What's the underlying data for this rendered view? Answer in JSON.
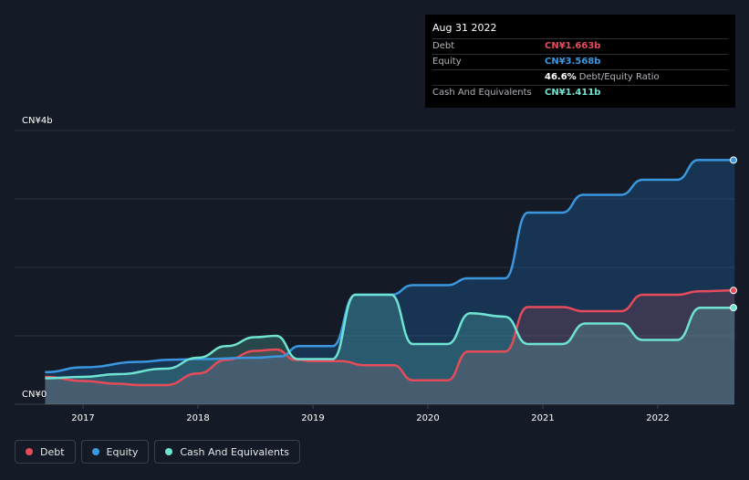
{
  "tooltip": {
    "date": "Aug 31 2022",
    "rows": [
      {
        "label": "Debt",
        "value": "CN¥1.663b",
        "color": "#e64b5a"
      },
      {
        "label": "Equity",
        "value": "CN¥3.568b",
        "color": "#3b97e0"
      },
      {
        "label": "",
        "value": "46.6%",
        "suffix": "Debt/Equity Ratio",
        "color": "#ffffff"
      },
      {
        "label": "Cash And Equivalents",
        "value": "CN¥1.411b",
        "color": "#6fe3d1"
      }
    ]
  },
  "legend": [
    {
      "label": "Debt",
      "color": "#e64b5a"
    },
    {
      "label": "Equity",
      "color": "#3b97e0"
    },
    {
      "label": "Cash And Equivalents",
      "color": "#6fe3d1"
    }
  ],
  "chart_data": {
    "type": "area",
    "title": "",
    "xlabel": "",
    "ylabel": "",
    "y_tick_labels": [
      "CN¥4b",
      "CN¥0"
    ],
    "x_tick_labels": [
      "2017",
      "2018",
      "2019",
      "2020",
      "2021",
      "2022"
    ],
    "xlim": [
      2016.65,
      2022.67
    ],
    "ylim": [
      0,
      4
    ],
    "grid": true,
    "series": [
      {
        "name": "Debt",
        "color": "#e64b5a",
        "points": [
          [
            2016.67,
            0.4
          ],
          [
            2017.0,
            0.34
          ],
          [
            2017.3,
            0.3
          ],
          [
            2017.5,
            0.28
          ],
          [
            2017.72,
            0.28
          ],
          [
            2018.0,
            0.45
          ],
          [
            2018.25,
            0.65
          ],
          [
            2018.5,
            0.78
          ],
          [
            2018.68,
            0.8
          ],
          [
            2018.85,
            0.65
          ],
          [
            2019.0,
            0.63
          ],
          [
            2019.25,
            0.63
          ],
          [
            2019.45,
            0.57
          ],
          [
            2019.7,
            0.57
          ],
          [
            2019.87,
            0.35
          ],
          [
            2020.17,
            0.35
          ],
          [
            2020.35,
            0.77
          ],
          [
            2020.67,
            0.77
          ],
          [
            2020.87,
            1.42
          ],
          [
            2021.17,
            1.42
          ],
          [
            2021.35,
            1.36
          ],
          [
            2021.68,
            1.36
          ],
          [
            2021.87,
            1.6
          ],
          [
            2022.17,
            1.6
          ],
          [
            2022.35,
            1.65
          ],
          [
            2022.67,
            1.663
          ]
        ]
      },
      {
        "name": "Equity",
        "color": "#3b97e0",
        "points": [
          [
            2016.67,
            0.47
          ],
          [
            2017.0,
            0.54
          ],
          [
            2017.5,
            0.62
          ],
          [
            2017.75,
            0.65
          ],
          [
            2018.0,
            0.66
          ],
          [
            2018.5,
            0.68
          ],
          [
            2018.72,
            0.7
          ],
          [
            2018.88,
            0.85
          ],
          [
            2019.17,
            0.85
          ],
          [
            2019.37,
            1.6
          ],
          [
            2019.68,
            1.6
          ],
          [
            2019.87,
            1.74
          ],
          [
            2020.17,
            1.74
          ],
          [
            2020.35,
            1.84
          ],
          [
            2020.67,
            1.84
          ],
          [
            2020.87,
            2.8
          ],
          [
            2021.17,
            2.8
          ],
          [
            2021.35,
            3.06
          ],
          [
            2021.68,
            3.06
          ],
          [
            2021.87,
            3.28
          ],
          [
            2022.17,
            3.28
          ],
          [
            2022.35,
            3.568
          ],
          [
            2022.67,
            3.568
          ]
        ]
      },
      {
        "name": "Cash And Equivalents",
        "color": "#6fe3d1",
        "points": [
          [
            2016.67,
            0.38
          ],
          [
            2017.0,
            0.4
          ],
          [
            2017.3,
            0.44
          ],
          [
            2017.72,
            0.52
          ],
          [
            2018.0,
            0.68
          ],
          [
            2018.25,
            0.85
          ],
          [
            2018.5,
            0.98
          ],
          [
            2018.68,
            1.0
          ],
          [
            2018.87,
            0.66
          ],
          [
            2019.17,
            0.66
          ],
          [
            2019.37,
            1.6
          ],
          [
            2019.68,
            1.6
          ],
          [
            2019.87,
            0.88
          ],
          [
            2020.17,
            0.88
          ],
          [
            2020.37,
            1.33
          ],
          [
            2020.67,
            1.28
          ],
          [
            2020.87,
            0.88
          ],
          [
            2021.17,
            0.88
          ],
          [
            2021.37,
            1.18
          ],
          [
            2021.68,
            1.18
          ],
          [
            2021.87,
            0.94
          ],
          [
            2022.17,
            0.94
          ],
          [
            2022.37,
            1.411
          ],
          [
            2022.67,
            1.411
          ]
        ]
      }
    ]
  }
}
